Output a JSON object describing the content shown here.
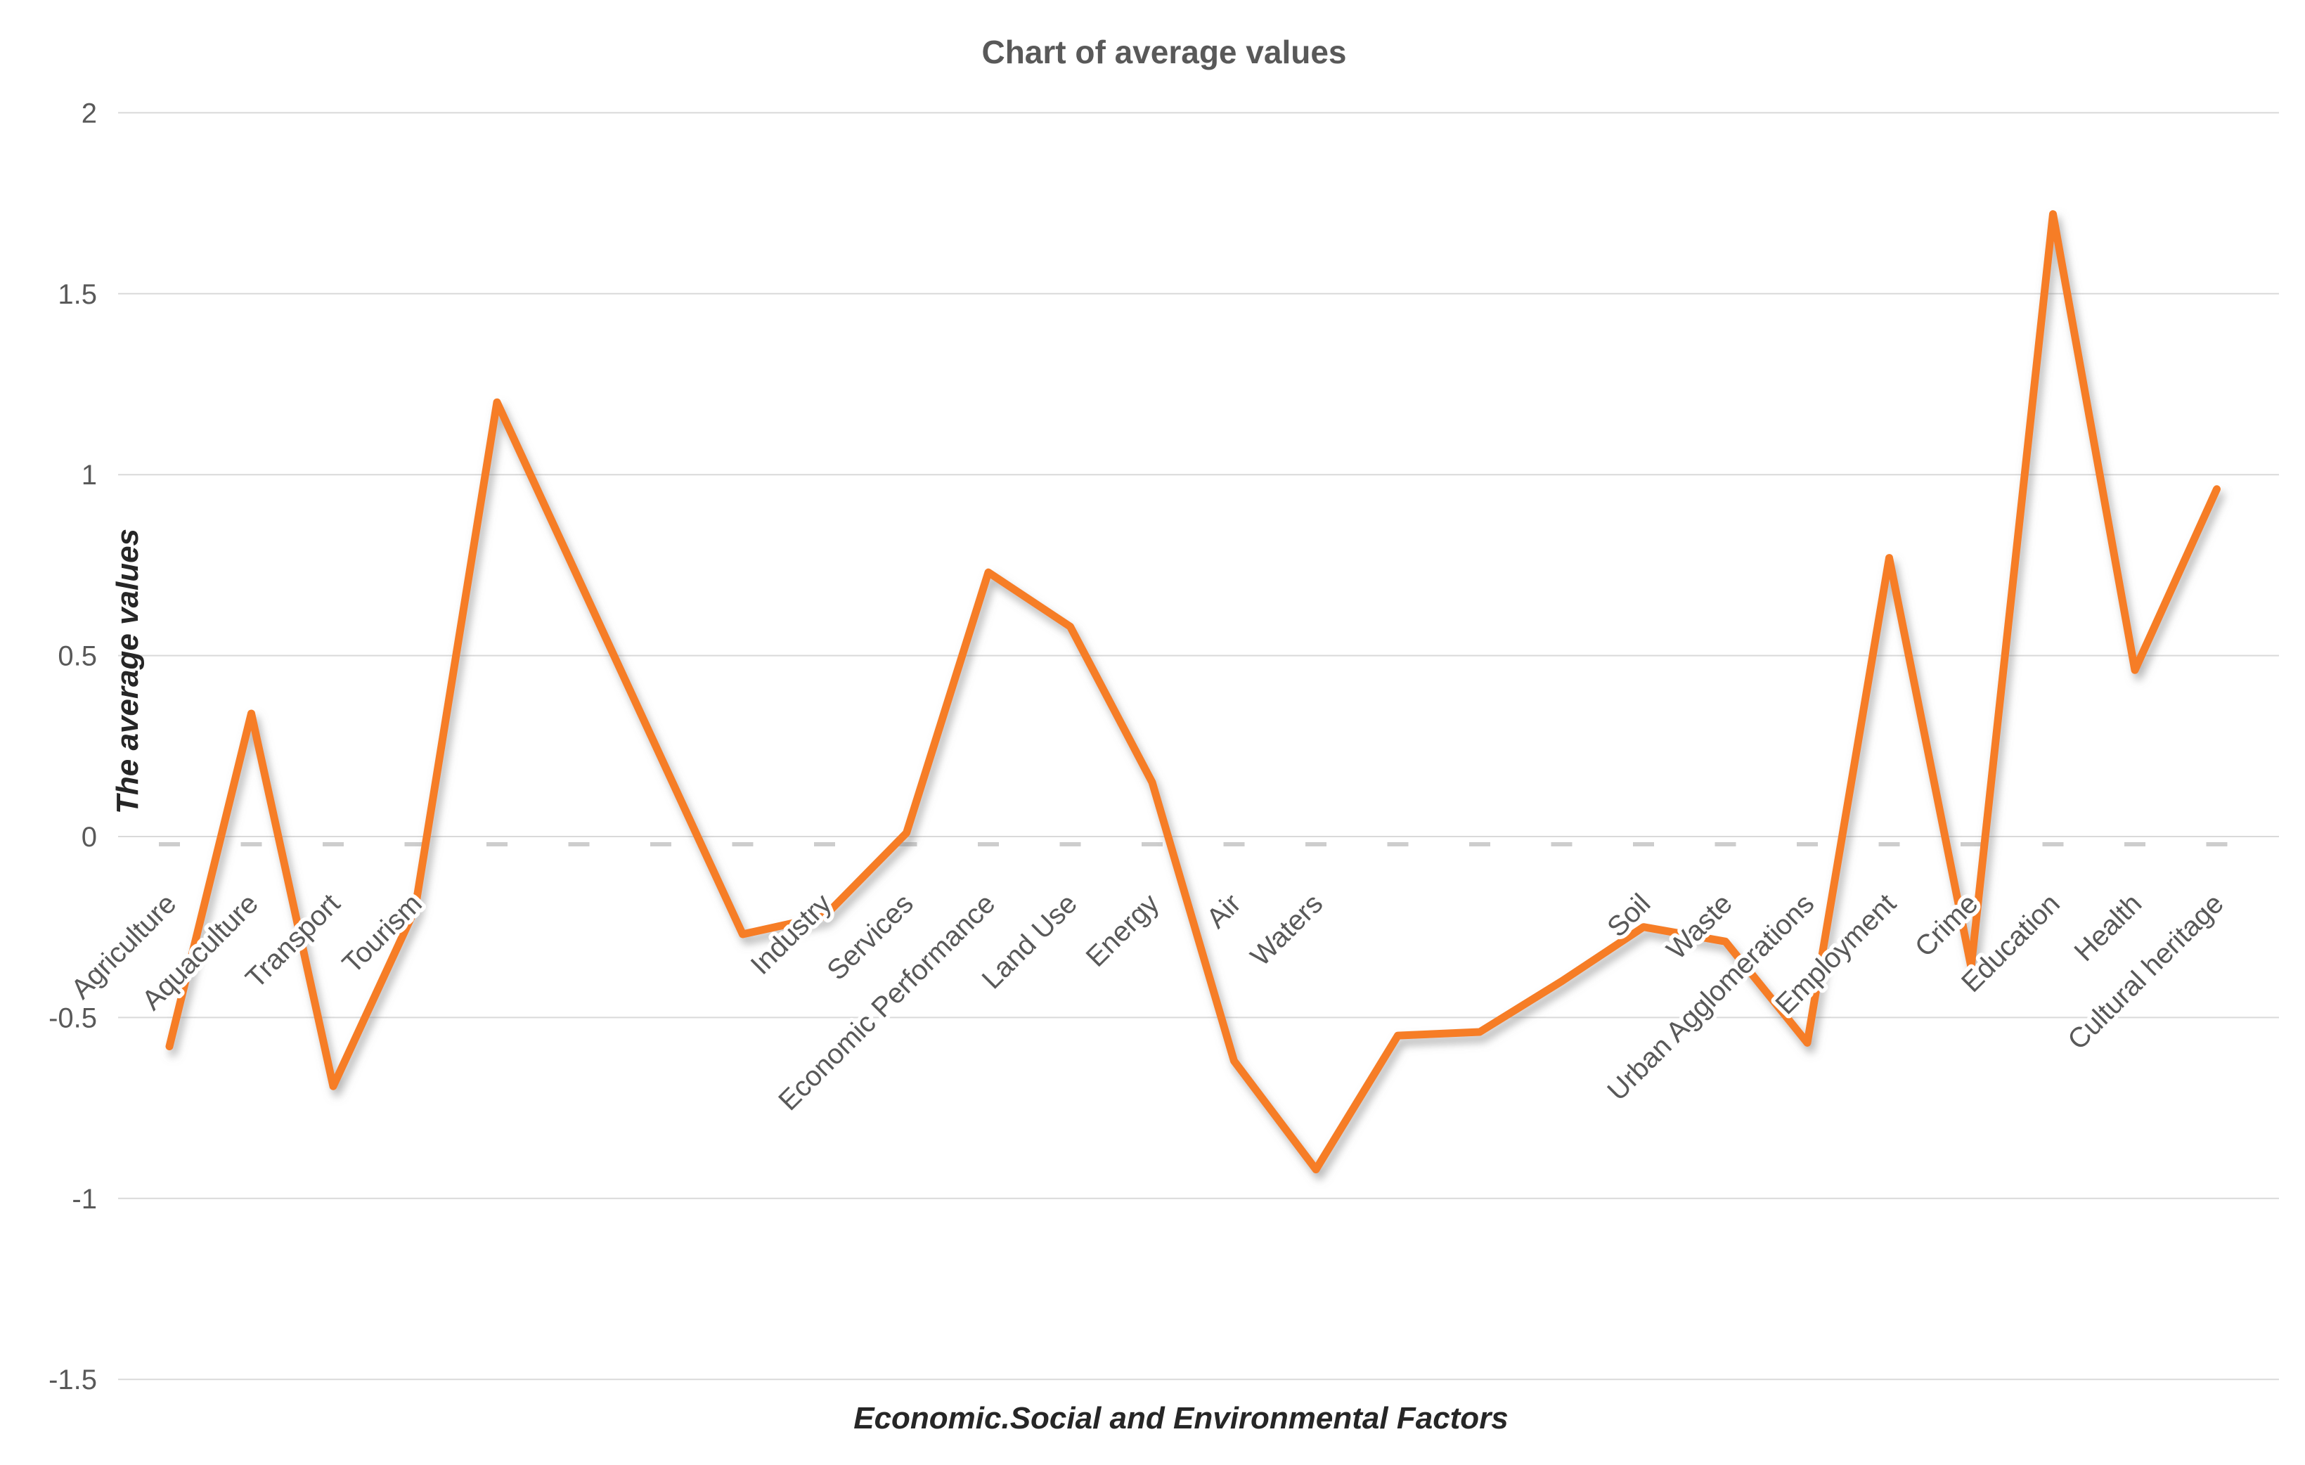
{
  "chart_data": {
    "type": "line",
    "title": "Chart of average values",
    "xlabel": "Economic.Social and Environmental Factors",
    "ylabel": "The average values",
    "categories": [
      "Agriculture",
      "Aquaculture",
      "Transport",
      "Tourism",
      "",
      "",
      "",
      "",
      "Industry",
      "Services",
      "Economic Performance",
      "Land Use",
      "Energy",
      "Air",
      "Waters",
      "",
      "",
      "",
      "Soil",
      "Waste",
      "Urban Agglomerations",
      "Employment",
      "Crime",
      "Education",
      "Health",
      "Cultural heritage"
    ],
    "values": [
      -0.58,
      0.34,
      -0.69,
      -0.2,
      1.2,
      0.71,
      0.22,
      -0.27,
      -0.22,
      0.01,
      0.73,
      0.58,
      0.15,
      -0.62,
      -0.92,
      -0.55,
      -0.54,
      -0.4,
      -0.25,
      -0.29,
      -0.57,
      0.77,
      -0.36,
      1.72,
      0.46,
      0.96
    ],
    "ylim": [
      -1.5,
      2
    ],
    "ytick_labels": [
      "2",
      "1.5",
      "1",
      "0.5",
      "0",
      "-0.5",
      "-1",
      "-1.5"
    ],
    "yticks": [
      2,
      1.5,
      1,
      0.5,
      0,
      -0.5,
      -1,
      -1.5
    ],
    "grid": true,
    "legend_position": "none",
    "line_color": "#F67D28",
    "shadow_color": "#8a8a8a",
    "gridline_color": "#D9D9D9",
    "tick_text_color": "#595959",
    "axis_title_color": "#262626"
  }
}
